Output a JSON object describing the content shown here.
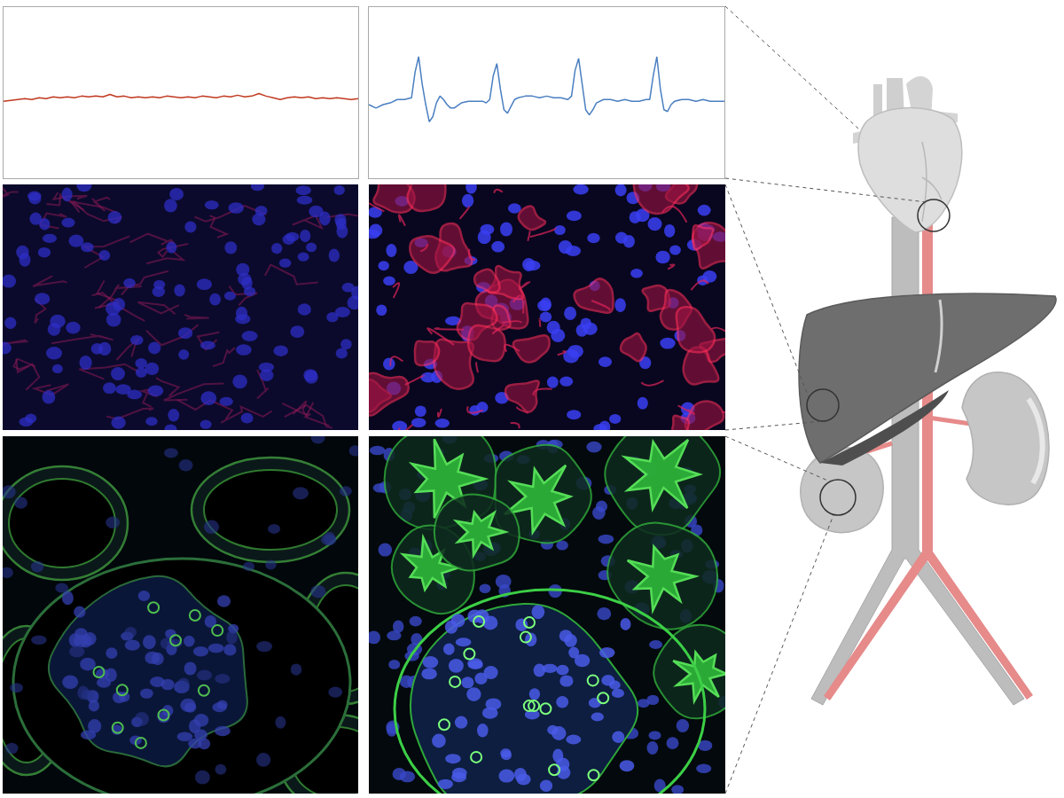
{
  "chart_data": [
    {
      "type": "line",
      "xlim": [
        0,
        100
      ],
      "ylim": [
        0,
        100
      ],
      "grid": false,
      "tick_labels": false,
      "series": [
        {
          "color": "#c0391f",
          "x": [
            0,
            2,
            4,
            6,
            8,
            10,
            12,
            14,
            16,
            18,
            20,
            22,
            24,
            26,
            28,
            30,
            32,
            34,
            36,
            38,
            40,
            42,
            44,
            46,
            48,
            50,
            52,
            54,
            56,
            58,
            60,
            62,
            64,
            66,
            68,
            70,
            72,
            74,
            76,
            78,
            80,
            82,
            84,
            86,
            88,
            90,
            92,
            94,
            96,
            98,
            100
          ],
          "values": [
            45,
            45.5,
            46,
            46.5,
            46,
            47,
            46.5,
            47.5,
            47,
            47.5,
            47,
            48,
            47.5,
            48,
            47.5,
            49,
            47.5,
            48,
            47,
            47.5,
            47,
            47.5,
            47,
            48,
            47.5,
            47,
            47.5,
            47,
            48,
            47.5,
            47,
            48,
            47.5,
            48.5,
            47.5,
            48,
            49.5,
            48,
            47,
            46,
            47,
            47.5,
            47,
            47.5,
            46.5,
            47,
            46.5,
            47,
            46.5,
            46,
            46.5
          ]
        }
      ]
    },
    {
      "type": "line",
      "xlim": [
        0,
        100
      ],
      "ylim": [
        0,
        100
      ],
      "grid": false,
      "tick_labels": false,
      "series": [
        {
          "color": "#4a7fc1",
          "x": [
            0,
            2,
            4,
            6,
            8,
            10,
            12,
            13,
            14,
            15,
            16,
            17,
            18,
            19,
            20,
            21,
            22,
            23,
            24,
            26,
            28,
            30,
            32,
            33,
            34,
            35,
            36,
            37,
            38,
            39,
            40,
            41,
            42,
            44,
            46,
            48,
            50,
            52,
            54,
            56,
            57,
            58,
            59,
            60,
            61,
            62,
            63,
            64,
            66,
            68,
            70,
            72,
            74,
            76,
            78,
            79,
            80,
            81,
            82,
            83,
            84,
            85,
            86,
            88,
            90,
            92,
            94,
            96,
            98,
            100
          ],
          "values": [
            43,
            41,
            43,
            44,
            46,
            46,
            47,
            62,
            71,
            55,
            43,
            33,
            36,
            44,
            48,
            46,
            43,
            41,
            41,
            44,
            45,
            45,
            45,
            44,
            46,
            60,
            67,
            52,
            40,
            38,
            42,
            46,
            47,
            48,
            48,
            47,
            48,
            47,
            47,
            46,
            48,
            63,
            70,
            55,
            40,
            37,
            40,
            44,
            46,
            46,
            45,
            46,
            45,
            45,
            46,
            46,
            60,
            71,
            52,
            40,
            39,
            43,
            45,
            46,
            46,
            45,
            46,
            45,
            45,
            45
          ]
        }
      ]
    }
  ]
}
